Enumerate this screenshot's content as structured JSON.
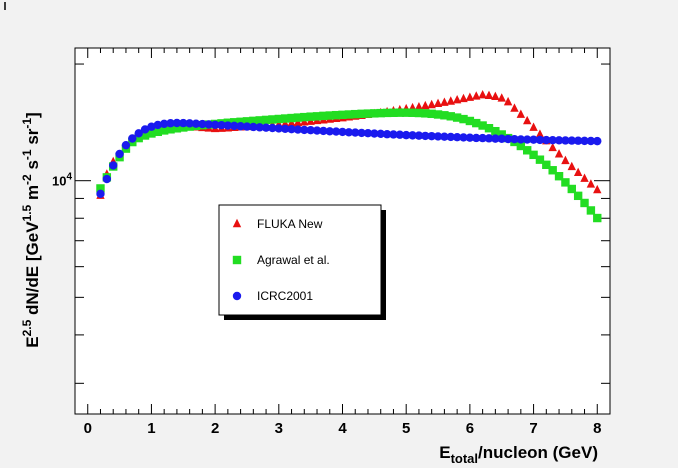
{
  "chart_data": {
    "type": "scatter",
    "title": "",
    "xlabel": {
      "main": "E",
      "sub": "total",
      "rest": "/nucleon (GeV)"
    },
    "ylabel": {
      "parts": [
        {
          "t": "E"
        },
        {
          "t": "2.5",
          "sup": true
        },
        {
          "t": " dN/dE [GeV"
        },
        {
          "t": "1.5",
          "sup": true
        },
        {
          "t": " m"
        },
        {
          "t": "-2",
          "sup": true
        },
        {
          "t": " s"
        },
        {
          "t": "-1",
          "sup": true
        },
        {
          "t": " sr"
        },
        {
          "t": "-1",
          "sup": true
        },
        {
          "t": "]"
        }
      ]
    },
    "xlim": [
      -0.2,
      8.2
    ],
    "ylim": [
      2500,
      22000
    ],
    "yscale": "log",
    "grid": false,
    "legend_position": "center-left",
    "x_ticks": [
      "0",
      "1",
      "2",
      "3",
      "4",
      "5",
      "6",
      "7",
      "8"
    ],
    "y_tick_label": {
      "base": "10",
      "exp": "4"
    },
    "series": [
      {
        "name": "FLUKA New",
        "marker": "triangle",
        "color": "#e81010",
        "points": [
          [
            0.2,
            9150
          ],
          [
            0.3,
            10380
          ],
          [
            0.4,
            11180
          ],
          [
            0.5,
            11660
          ],
          [
            0.6,
            12250
          ],
          [
            0.7,
            12700
          ],
          [
            0.8,
            13020
          ],
          [
            0.9,
            13260
          ],
          [
            1.0,
            13420
          ],
          [
            1.1,
            13560
          ],
          [
            1.2,
            13660
          ],
          [
            1.3,
            13720
          ],
          [
            1.4,
            13760
          ],
          [
            1.5,
            13790
          ],
          [
            1.6,
            13780
          ],
          [
            1.7,
            13730
          ],
          [
            1.8,
            13680
          ],
          [
            1.9,
            13640
          ],
          [
            2.0,
            13600
          ],
          [
            2.1,
            13620
          ],
          [
            2.2,
            13650
          ],
          [
            2.3,
            13690
          ],
          [
            2.4,
            13730
          ],
          [
            2.5,
            13760
          ],
          [
            2.6,
            13790
          ],
          [
            2.7,
            13830
          ],
          [
            2.8,
            13870
          ],
          [
            2.9,
            13910
          ],
          [
            3.0,
            13950
          ],
          [
            3.1,
            14000
          ],
          [
            3.2,
            14050
          ],
          [
            3.3,
            14100
          ],
          [
            3.4,
            14150
          ],
          [
            3.5,
            14200
          ],
          [
            3.6,
            14260
          ],
          [
            3.7,
            14320
          ],
          [
            3.8,
            14380
          ],
          [
            3.9,
            14440
          ],
          [
            4.0,
            14500
          ],
          [
            4.1,
            14570
          ],
          [
            4.2,
            14640
          ],
          [
            4.3,
            14710
          ],
          [
            4.4,
            14790
          ],
          [
            4.5,
            14870
          ],
          [
            4.6,
            14950
          ],
          [
            4.7,
            15030
          ],
          [
            4.8,
            15120
          ],
          [
            4.9,
            15210
          ],
          [
            5.0,
            15300
          ],
          [
            5.1,
            15390
          ],
          [
            5.2,
            15480
          ],
          [
            5.3,
            15580
          ],
          [
            5.4,
            15680
          ],
          [
            5.5,
            15790
          ],
          [
            5.6,
            15900
          ],
          [
            5.7,
            16010
          ],
          [
            5.8,
            16130
          ],
          [
            5.9,
            16250
          ],
          [
            6.0,
            16380
          ],
          [
            6.1,
            16500
          ],
          [
            6.2,
            16620
          ],
          [
            6.3,
            16560
          ],
          [
            6.4,
            16460
          ],
          [
            6.5,
            16300
          ],
          [
            6.6,
            15950
          ],
          [
            6.7,
            15350
          ],
          [
            6.8,
            14800
          ],
          [
            6.9,
            14250
          ],
          [
            7.0,
            13700
          ],
          [
            7.1,
            13150
          ],
          [
            7.2,
            12650
          ],
          [
            7.3,
            12150
          ],
          [
            7.4,
            11700
          ],
          [
            7.5,
            11250
          ],
          [
            7.6,
            10850
          ],
          [
            7.7,
            10480
          ],
          [
            7.8,
            10120
          ],
          [
            7.9,
            9780
          ],
          [
            8.0,
            9460
          ]
        ]
      },
      {
        "name": "Agrawal et al.",
        "marker": "square",
        "color": "#22dd22",
        "points": [
          [
            0.2,
            9550
          ],
          [
            0.3,
            10200
          ],
          [
            0.4,
            10880
          ],
          [
            0.5,
            11500
          ],
          [
            0.6,
            12100
          ],
          [
            0.7,
            12580
          ],
          [
            0.8,
            12880
          ],
          [
            0.9,
            13080
          ],
          [
            1.0,
            13240
          ],
          [
            1.1,
            13370
          ],
          [
            1.2,
            13480
          ],
          [
            1.3,
            13570
          ],
          [
            1.4,
            13650
          ],
          [
            1.5,
            13720
          ],
          [
            1.6,
            13790
          ],
          [
            1.7,
            13850
          ],
          [
            1.8,
            13910
          ],
          [
            1.9,
            13960
          ],
          [
            2.0,
            14010
          ],
          [
            2.1,
            14060
          ],
          [
            2.2,
            14110
          ],
          [
            2.3,
            14150
          ],
          [
            2.4,
            14190
          ],
          [
            2.5,
            14230
          ],
          [
            2.6,
            14270
          ],
          [
            2.7,
            14310
          ],
          [
            2.8,
            14350
          ],
          [
            2.9,
            14390
          ],
          [
            3.0,
            14430
          ],
          [
            3.1,
            14470
          ],
          [
            3.2,
            14510
          ],
          [
            3.3,
            14550
          ],
          [
            3.4,
            14590
          ],
          [
            3.5,
            14630
          ],
          [
            3.6,
            14660
          ],
          [
            3.7,
            14700
          ],
          [
            3.8,
            14730
          ],
          [
            3.9,
            14760
          ],
          [
            4.0,
            14790
          ],
          [
            4.1,
            14820
          ],
          [
            4.2,
            14850
          ],
          [
            4.3,
            14880
          ],
          [
            4.4,
            14900
          ],
          [
            4.5,
            14920
          ],
          [
            4.6,
            14940
          ],
          [
            4.7,
            14960
          ],
          [
            4.8,
            14970
          ],
          [
            4.9,
            14980
          ],
          [
            5.0,
            14980
          ],
          [
            5.1,
            14970
          ],
          [
            5.2,
            14950
          ],
          [
            5.3,
            14920
          ],
          [
            5.4,
            14880
          ],
          [
            5.5,
            14820
          ],
          [
            5.6,
            14750
          ],
          [
            5.7,
            14660
          ],
          [
            5.8,
            14550
          ],
          [
            5.9,
            14420
          ],
          [
            6.0,
            14260
          ],
          [
            6.1,
            14080
          ],
          [
            6.2,
            13880
          ],
          [
            6.3,
            13660
          ],
          [
            6.4,
            13420
          ],
          [
            6.5,
            13160
          ],
          [
            6.6,
            12880
          ],
          [
            6.7,
            12590
          ],
          [
            6.8,
            12290
          ],
          [
            6.9,
            11980
          ],
          [
            7.0,
            11660
          ],
          [
            7.1,
            11330
          ],
          [
            7.2,
            10990
          ],
          [
            7.3,
            10640
          ],
          [
            7.4,
            10270
          ],
          [
            7.5,
            9900
          ],
          [
            7.6,
            9520
          ],
          [
            7.7,
            9140
          ],
          [
            7.8,
            8760
          ],
          [
            7.9,
            8380
          ],
          [
            8.0,
            8010
          ]
        ]
      },
      {
        "name": "ICRC2001",
        "marker": "circle",
        "color": "#1a1aee",
        "points": [
          [
            0.2,
            9250
          ],
          [
            0.3,
            10100
          ],
          [
            0.4,
            10950
          ],
          [
            0.5,
            11720
          ],
          [
            0.6,
            12350
          ],
          [
            0.7,
            12850
          ],
          [
            0.8,
            13250
          ],
          [
            0.9,
            13560
          ],
          [
            1.0,
            13780
          ],
          [
            1.1,
            13930
          ],
          [
            1.2,
            14020
          ],
          [
            1.3,
            14070
          ],
          [
            1.4,
            14090
          ],
          [
            1.5,
            14080
          ],
          [
            1.6,
            14060
          ],
          [
            1.7,
            14030
          ],
          [
            1.8,
            14000
          ],
          [
            1.9,
            13970
          ],
          [
            2.0,
            13940
          ],
          [
            2.1,
            13910
          ],
          [
            2.2,
            13880
          ],
          [
            2.3,
            13850
          ],
          [
            2.4,
            13820
          ],
          [
            2.5,
            13790
          ],
          [
            2.6,
            13760
          ],
          [
            2.7,
            13730
          ],
          [
            2.8,
            13700
          ],
          [
            2.9,
            13670
          ],
          [
            3.0,
            13640
          ],
          [
            3.1,
            13610
          ],
          [
            3.2,
            13580
          ],
          [
            3.3,
            13550
          ],
          [
            3.4,
            13520
          ],
          [
            3.5,
            13500
          ],
          [
            3.6,
            13470
          ],
          [
            3.7,
            13440
          ],
          [
            3.8,
            13410
          ],
          [
            3.9,
            13390
          ],
          [
            4.0,
            13360
          ],
          [
            4.1,
            13330
          ],
          [
            4.2,
            13310
          ],
          [
            4.3,
            13280
          ],
          [
            4.4,
            13260
          ],
          [
            4.5,
            13230
          ],
          [
            4.6,
            13210
          ],
          [
            4.7,
            13180
          ],
          [
            4.8,
            13160
          ],
          [
            4.9,
            13140
          ],
          [
            5.0,
            13110
          ],
          [
            5.1,
            13090
          ],
          [
            5.2,
            13070
          ],
          [
            5.3,
            13050
          ],
          [
            5.4,
            13030
          ],
          [
            5.5,
            13010
          ],
          [
            5.6,
            12990
          ],
          [
            5.7,
            12970
          ],
          [
            5.8,
            12950
          ],
          [
            5.9,
            12930
          ],
          [
            6.0,
            12910
          ],
          [
            6.1,
            12890
          ],
          [
            6.2,
            12880
          ],
          [
            6.3,
            12860
          ],
          [
            6.4,
            12840
          ],
          [
            6.5,
            12830
          ],
          [
            6.6,
            12810
          ],
          [
            6.7,
            12800
          ],
          [
            6.8,
            12780
          ],
          [
            6.9,
            12770
          ],
          [
            7.0,
            12760
          ],
          [
            7.1,
            12740
          ],
          [
            7.2,
            12730
          ],
          [
            7.3,
            12720
          ],
          [
            7.4,
            12710
          ],
          [
            7.5,
            12700
          ],
          [
            7.6,
            12690
          ],
          [
            7.7,
            12680
          ],
          [
            7.8,
            12670
          ],
          [
            7.9,
            12660
          ],
          [
            8.0,
            12650
          ]
        ]
      }
    ]
  }
}
